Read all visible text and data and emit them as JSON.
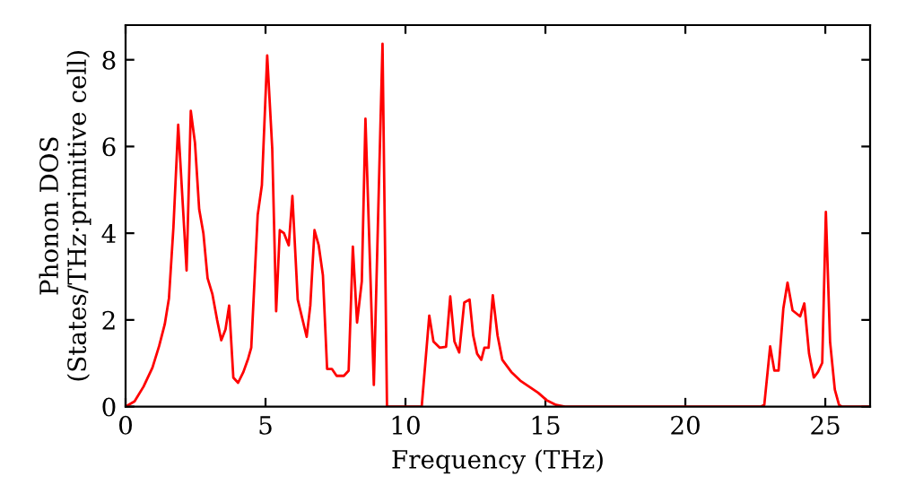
{
  "chart_data": {
    "type": "line",
    "xlabel": "Frequency (THz)",
    "ylabel": "Phonon DOS\n(States/THz·primitive cell)",
    "xlim": [
      0,
      26.6
    ],
    "xticks": [
      0,
      5,
      10,
      15,
      20,
      25
    ],
    "ylim": [
      0,
      8.8
    ],
    "yticks": [
      0,
      2,
      4,
      6,
      8
    ],
    "grid": false,
    "legend": false,
    "marker": "none",
    "line_style": "solid",
    "series": [
      {
        "color": "#ff0000",
        "x": [
          0,
          0.32,
          0.64,
          0.96,
          1.2,
          1.4,
          1.55,
          1.71,
          1.88,
          2.18,
          2.33,
          2.48,
          2.63,
          2.78,
          2.93,
          3.1,
          3.27,
          3.42,
          3.57,
          3.7,
          3.85,
          4.02,
          4.21,
          4.38,
          4.49,
          4.72,
          4.87,
          5.06,
          5.24,
          5.38,
          5.51,
          5.66,
          5.83,
          5.96,
          6.15,
          6.47,
          6.6,
          6.75,
          6.9,
          7.05,
          7.2,
          7.37,
          7.54,
          7.8,
          7.97,
          8.12,
          8.27,
          8.44,
          8.57,
          8.87,
          9.18,
          9.34,
          10.58,
          10.85,
          11.0,
          11.22,
          11.45,
          11.6,
          11.75,
          11.92,
          12.1,
          12.29,
          12.42,
          12.56,
          12.71,
          12.82,
          12.97,
          13.12,
          13.29,
          13.46,
          13.78,
          14.1,
          14.42,
          14.74,
          15.06,
          15.38,
          15.7,
          22.7,
          22.82,
          23.03,
          23.18,
          23.33,
          23.5,
          23.65,
          23.83,
          24.1,
          24.25,
          24.42,
          24.59,
          24.74,
          24.89,
          25.02,
          25.17,
          25.34,
          25.49,
          25.6,
          26.6
        ],
        "values": [
          0,
          0.12,
          0.46,
          0.9,
          1.4,
          1.9,
          2.5,
          4.14,
          6.5,
          3.14,
          6.82,
          6.08,
          4.55,
          4.0,
          2.96,
          2.6,
          2.0,
          1.53,
          1.78,
          2.33,
          0.67,
          0.55,
          0.8,
          1.11,
          1.36,
          4.42,
          5.11,
          8.1,
          5.95,
          2.2,
          4.07,
          4.0,
          3.72,
          4.86,
          2.47,
          1.61,
          2.33,
          4.07,
          3.72,
          3.03,
          0.87,
          0.87,
          0.71,
          0.71,
          0.83,
          3.69,
          1.94,
          2.89,
          6.64,
          0.5,
          8.37,
          0,
          0,
          2.1,
          1.5,
          1.36,
          1.38,
          2.54,
          1.5,
          1.25,
          2.4,
          2.47,
          1.64,
          1.22,
          1.08,
          1.36,
          1.36,
          2.57,
          1.64,
          1.08,
          0.8,
          0.6,
          0.46,
          0.32,
          0.14,
          0.04,
          0,
          0,
          0.04,
          1.39,
          0.83,
          0.83,
          2.26,
          2.86,
          2.22,
          2.08,
          2.38,
          1.22,
          0.67,
          0.8,
          1.01,
          4.49,
          1.5,
          0.39,
          0.04,
          0,
          0
        ]
      }
    ]
  }
}
